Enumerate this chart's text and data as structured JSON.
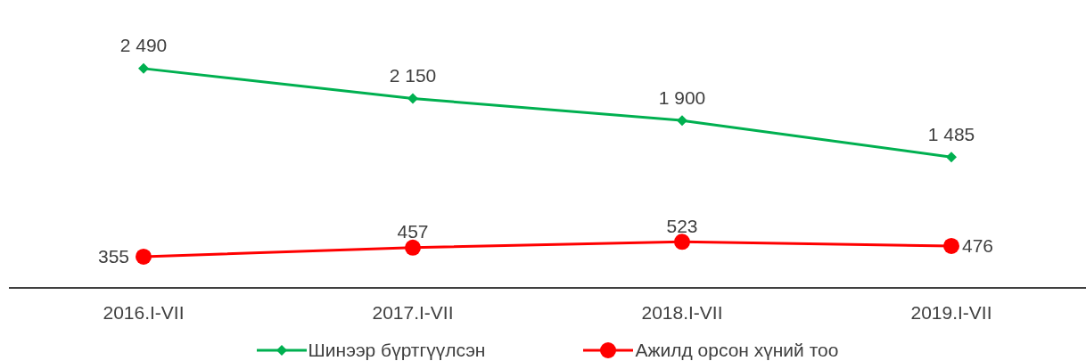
{
  "chart_data": {
    "type": "line",
    "categories": [
      "2016.I-VII",
      "2017.I-VII",
      "2018.I-VII",
      "2019.I-VII"
    ],
    "series": [
      {
        "name": "Шинээр бүртгүүлсэн",
        "color": "#00b050",
        "marker": "diamond",
        "values": [
          2490,
          2150,
          1900,
          1485
        ],
        "value_labels": [
          "2 490",
          "2 150",
          "1 900",
          "1 485"
        ]
      },
      {
        "name": "Ажилд орсон хүний тоо",
        "color": "#ff0000",
        "marker": "circle",
        "values": [
          355,
          457,
          523,
          476
        ],
        "value_labels": [
          "355",
          "457",
          "523",
          "476"
        ]
      }
    ],
    "legend": "bottom",
    "grid": false
  }
}
